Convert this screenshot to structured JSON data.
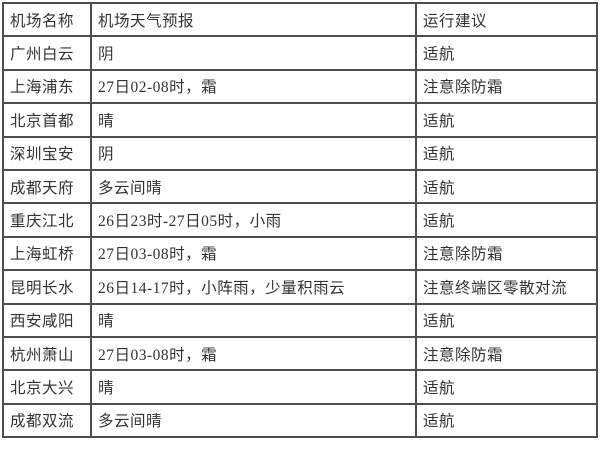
{
  "table": {
    "name": "airport-weather-forecast-table",
    "headers": [
      "机场名称",
      "机场天气预报",
      "运行建议"
    ],
    "rows": [
      [
        "广州白云",
        "阴",
        "适航"
      ],
      [
        "上海浦东",
        "27日02-08时，霜",
        "注意除防霜"
      ],
      [
        "北京首都",
        "晴",
        "适航"
      ],
      [
        "深圳宝安",
        "阴",
        "适航"
      ],
      [
        "成都天府",
        "多云间晴",
        "适航"
      ],
      [
        "重庆江北",
        "26日23时-27日05时，小雨",
        "适航"
      ],
      [
        "上海虹桥",
        "27日03-08时，霜",
        "注意除防霜"
      ],
      [
        "昆明长水",
        "26日14-17时，小阵雨，少量积雨云",
        "注意终端区零散对流"
      ],
      [
        "西安咸阳",
        "晴",
        "适航"
      ],
      [
        "杭州萧山",
        "27日03-08时，霜",
        "注意除防霜"
      ],
      [
        "北京大兴",
        "晴",
        "适航"
      ],
      [
        "成都双流",
        "多云间晴",
        "适航"
      ]
    ],
    "colors": {
      "border": "#4d4d4d",
      "text": "#333333",
      "background": "#ffffff"
    }
  }
}
